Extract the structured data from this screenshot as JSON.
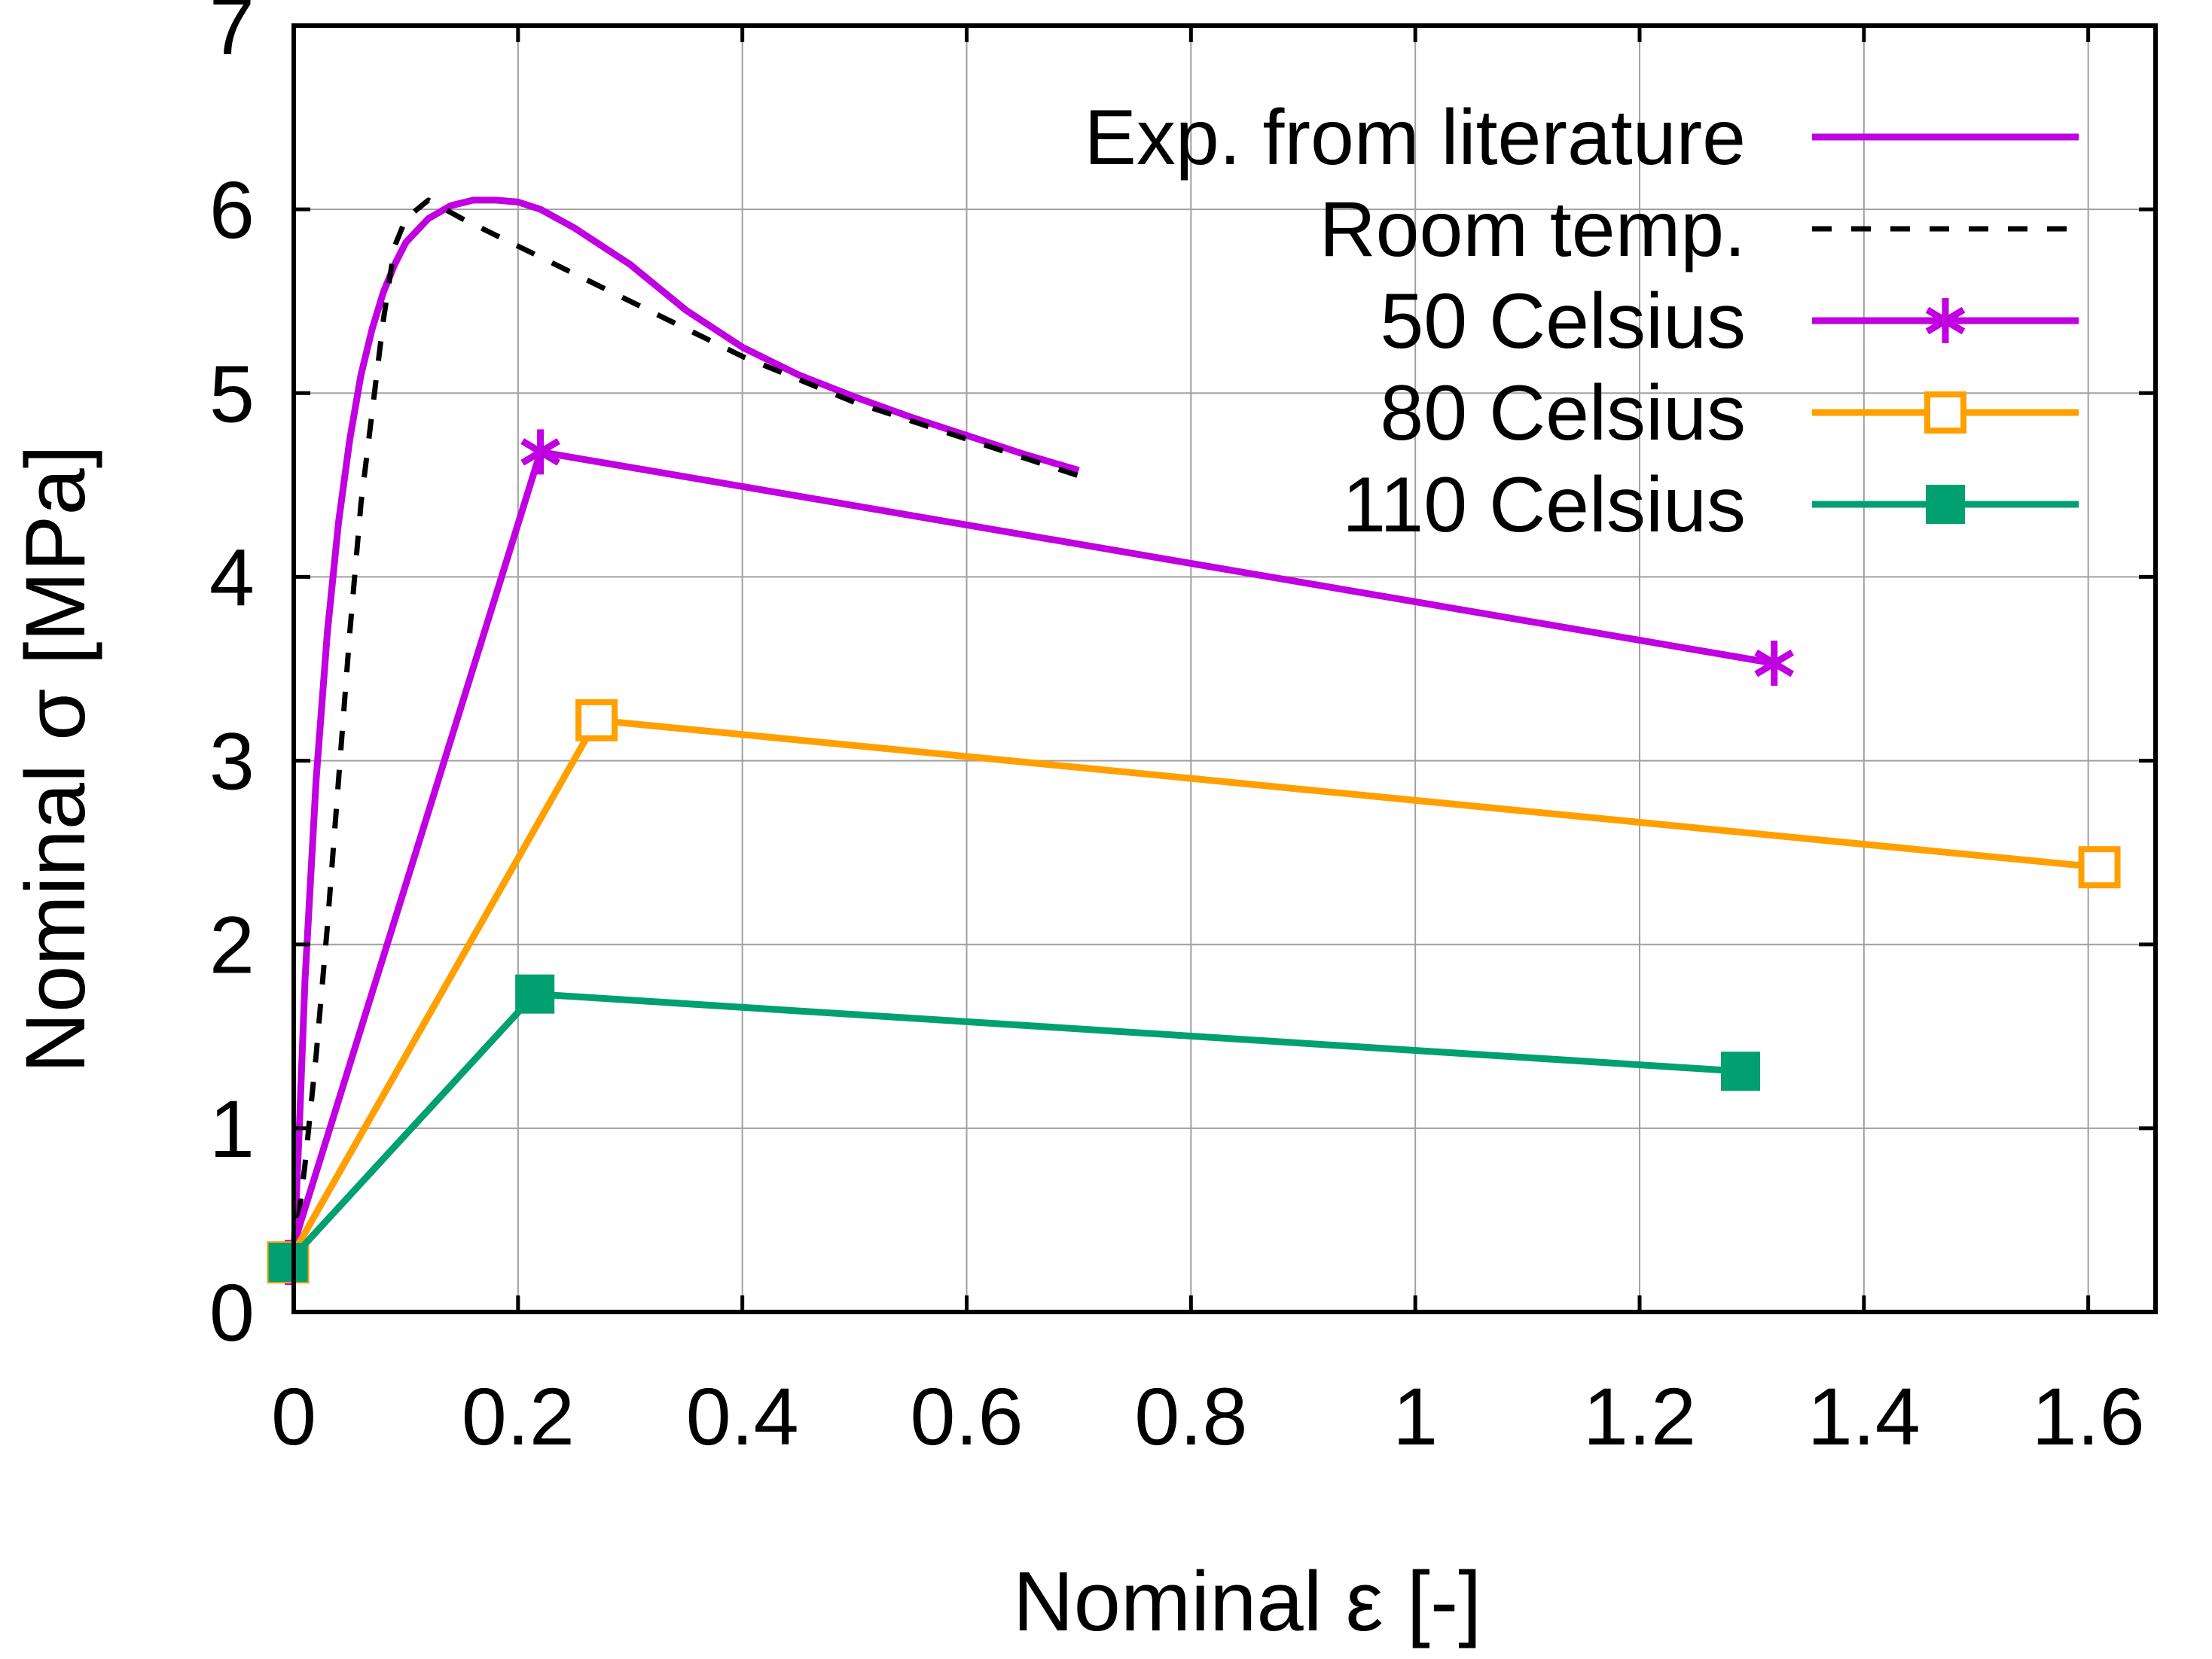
{
  "chart_data": {
    "type": "line",
    "title": "",
    "xlabel": "Nominal ε [-]",
    "ylabel": "Nominal σ [MPa]",
    "xlim": [
      0,
      1.66
    ],
    "ylim": [
      0,
      7
    ],
    "xticks": [
      0,
      0.2,
      0.4,
      0.6,
      0.8,
      1.0,
      1.2,
      1.4,
      1.6
    ],
    "xtick_labels": [
      "0",
      "0.2",
      "0.4",
      "0.6",
      "0.8",
      "1",
      "1.2",
      "1.4",
      "1.6"
    ],
    "yticks": [
      0,
      1,
      2,
      3,
      4,
      5,
      6,
      7
    ],
    "ytick_labels": [
      "0",
      "1",
      "2",
      "3",
      "4",
      "5",
      "6",
      "7"
    ],
    "grid": true,
    "legend_position": "top-right",
    "series": [
      {
        "name": "Exp. from literature",
        "color": "#c000e0",
        "style": "solid",
        "marker": "none",
        "x": [
          0.0,
          0.005,
          0.01,
          0.02,
          0.03,
          0.04,
          0.05,
          0.06,
          0.07,
          0.08,
          0.09,
          0.1,
          0.12,
          0.14,
          0.16,
          0.18,
          0.2,
          0.22,
          0.25,
          0.3,
          0.35,
          0.4,
          0.45,
          0.5,
          0.55,
          0.6,
          0.65,
          0.7
        ],
        "y": [
          0.3,
          1.0,
          1.8,
          2.9,
          3.7,
          4.3,
          4.75,
          5.1,
          5.35,
          5.55,
          5.7,
          5.82,
          5.95,
          6.02,
          6.05,
          6.05,
          6.04,
          6.0,
          5.9,
          5.7,
          5.45,
          5.25,
          5.1,
          4.98,
          4.87,
          4.77,
          4.67,
          4.58
        ]
      },
      {
        "name": "Room temp.",
        "color": "#000000",
        "style": "dashed",
        "marker": "none",
        "x": [
          0.0,
          0.01,
          0.02,
          0.03,
          0.04,
          0.05,
          0.06,
          0.07,
          0.08,
          0.09,
          0.1,
          0.12,
          0.15,
          0.2,
          0.25,
          0.3,
          0.4,
          0.5,
          0.6,
          0.7
        ],
        "y": [
          0.3,
          0.8,
          1.4,
          2.1,
          2.9,
          3.7,
          4.4,
          4.9,
          5.4,
          5.8,
          5.95,
          6.05,
          5.95,
          5.8,
          5.65,
          5.5,
          5.2,
          4.95,
          4.75,
          4.55
        ]
      },
      {
        "name": "50 Celsius",
        "color": "#c000e0",
        "style": "solid",
        "marker": "asterisk",
        "x": [
          -0.005,
          0.22,
          1.32
        ],
        "y": [
          0.27,
          4.68,
          3.53
        ]
      },
      {
        "name": "80 Celsius",
        "color": "#ffa000",
        "style": "solid",
        "marker": "open-square",
        "x": [
          -0.005,
          0.27,
          1.61
        ],
        "y": [
          0.27,
          3.22,
          2.42
        ]
      },
      {
        "name": "110 Celsius",
        "color": "#00a070",
        "style": "solid",
        "marker": "filled-square",
        "x": [
          -0.005,
          0.215,
          1.29
        ],
        "y": [
          0.27,
          1.73,
          1.31
        ]
      }
    ]
  }
}
